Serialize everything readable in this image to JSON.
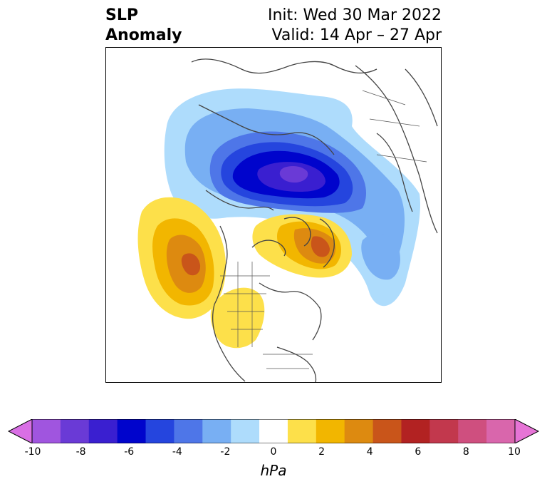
{
  "title": {
    "left_line1": "SLP",
    "left_line2": "Anomaly",
    "right_line1": "Init: Wed 30 Mar 2022",
    "right_line2": "Valid: 14 Apr – 27 Apr"
  },
  "map": {
    "projection": "polar-stereographic",
    "region": "Northern Hemisphere",
    "features": [
      {
        "type": "negative-anomaly",
        "location": "Arctic / North Pole",
        "min_hPa": -8
      },
      {
        "type": "negative-anomaly",
        "location": "Siberia",
        "min_hPa": -2
      },
      {
        "type": "negative-anomaly",
        "location": "North Atlantic / Europe",
        "min_hPa": -4
      },
      {
        "type": "positive-anomaly",
        "location": "Gulf of Alaska / NE Pacific",
        "max_hPa": 5
      },
      {
        "type": "positive-anomaly",
        "location": "Greenland / Baffin Bay",
        "max_hPa": 5
      },
      {
        "type": "positive-anomaly",
        "location": "Western North America",
        "max_hPa": 2
      }
    ]
  },
  "colorbar": {
    "units": "hPa",
    "ticks": [
      "-10",
      "-8",
      "-6",
      "-4",
      "-2",
      "0",
      "2",
      "4",
      "6",
      "8",
      "10"
    ],
    "colors": [
      "#d96fe5",
      "#a055df",
      "#6a3ad6",
      "#3a1fd0",
      "#0004cc",
      "#2545de",
      "#4e76e8",
      "#78aff3",
      "#aedcfc",
      "#ffffff",
      "#fde04a",
      "#f2b600",
      "#dd8a10",
      "#c9551a",
      "#b22222",
      "#c2384d",
      "#cf4f7f",
      "#d966ac",
      "#e674d6"
    ]
  }
}
